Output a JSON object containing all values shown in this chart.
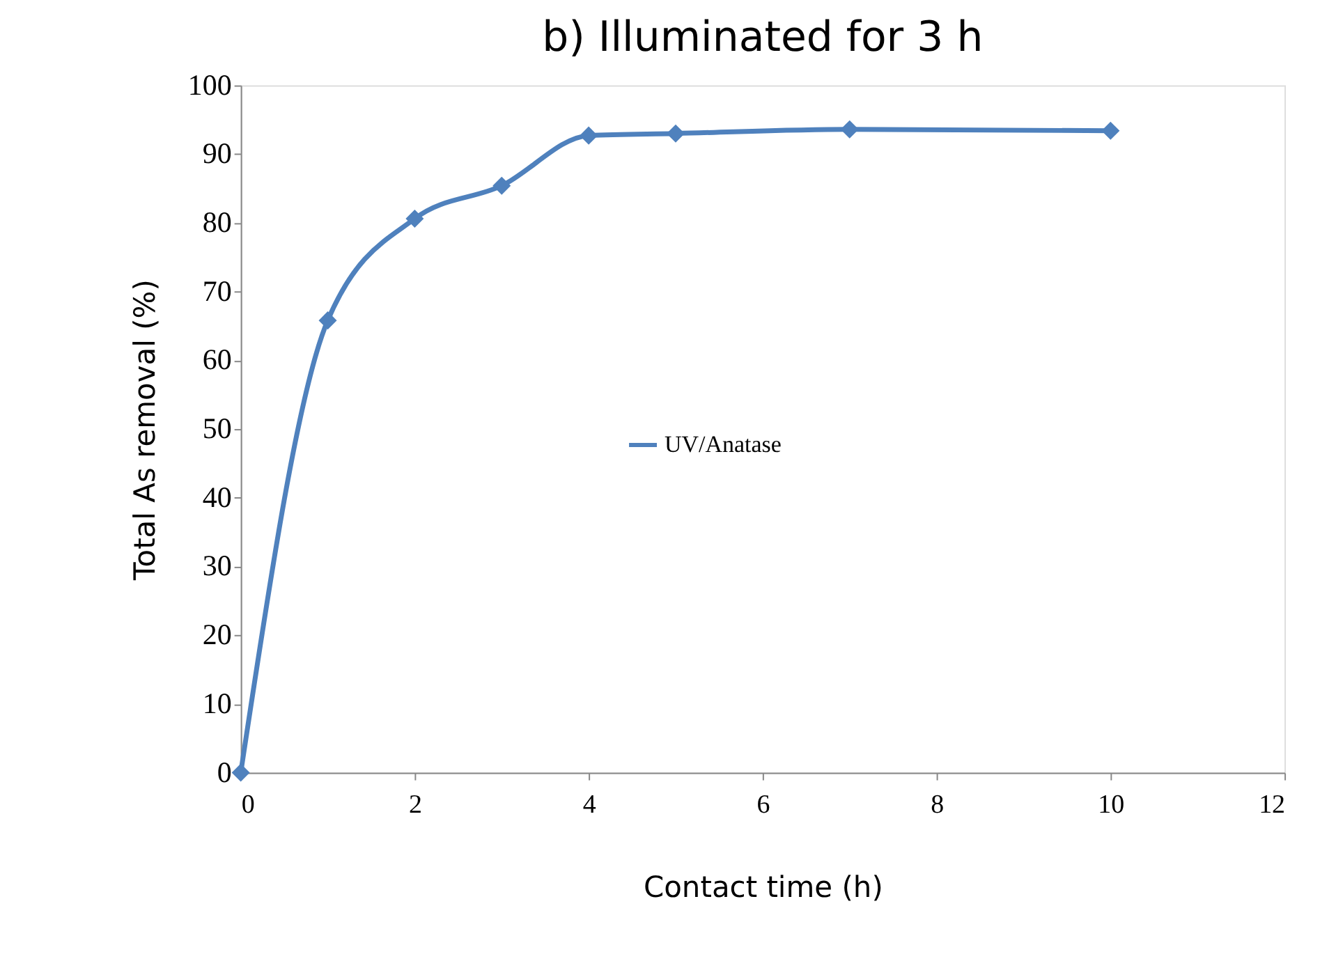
{
  "chart_data": {
    "type": "line",
    "title": "b) Illuminated for 3 h",
    "xlabel": "Contact time (h)",
    "ylabel": "Total As removal (%)",
    "x": [
      0,
      1,
      2,
      3,
      4,
      5,
      7,
      10
    ],
    "series": [
      {
        "name": "UV/Anatase",
        "color": "#4f81bd",
        "values": [
          0,
          65.8,
          80.6,
          85.4,
          92.7,
          93.0,
          93.6,
          93.4
        ]
      }
    ],
    "xlim": [
      0,
      12
    ],
    "xticks": [
      0,
      2,
      4,
      6,
      8,
      10,
      12
    ],
    "ylim": [
      0,
      100
    ],
    "yticks": [
      0,
      10,
      20,
      30,
      40,
      50,
      60,
      70,
      80,
      90,
      100
    ],
    "grid": false,
    "legend": "center",
    "marker": "diamond",
    "line_style": "solid"
  }
}
